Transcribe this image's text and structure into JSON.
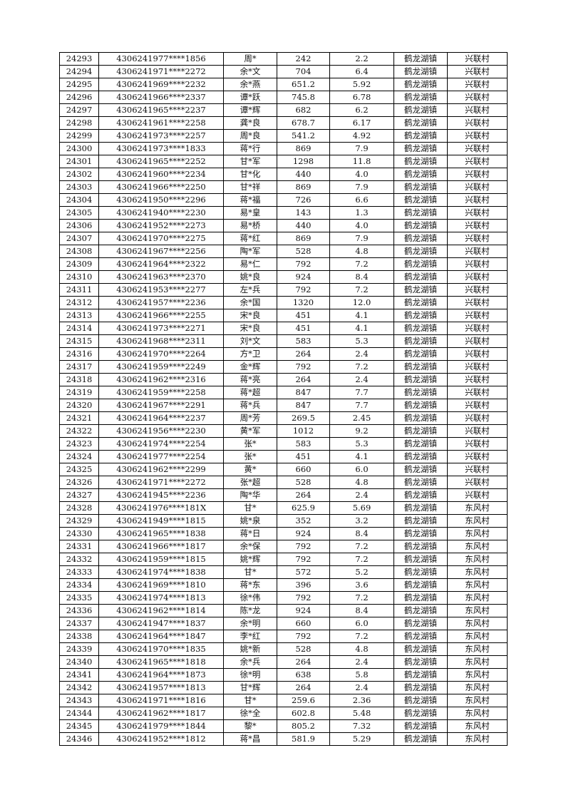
{
  "rows": [
    [
      "24293",
      "4306241977****1856",
      "周*",
      "242",
      "2.2",
      "鹤龙湖镇",
      "兴联村"
    ],
    [
      "24294",
      "4306241971****2272",
      "余*文",
      "704",
      "6.4",
      "鹤龙湖镇",
      "兴联村"
    ],
    [
      "24295",
      "4306241969****2232",
      "余*燕",
      "651.2",
      "5.92",
      "鹤龙湖镇",
      "兴联村"
    ],
    [
      "24296",
      "4306241966****2337",
      "谭*跃",
      "745.8",
      "6.78",
      "鹤龙湖镇",
      "兴联村"
    ],
    [
      "24297",
      "4306241965****2237",
      "谭*辉",
      "682",
      "6.2",
      "鹤龙湖镇",
      "兴联村"
    ],
    [
      "24298",
      "4306241961****2258",
      "龚*良",
      "678.7",
      "6.17",
      "鹤龙湖镇",
      "兴联村"
    ],
    [
      "24299",
      "4306241973****2257",
      "周*良",
      "541.2",
      "4.92",
      "鹤龙湖镇",
      "兴联村"
    ],
    [
      "24300",
      "4306241973****1833",
      "蒋*行",
      "869",
      "7.9",
      "鹤龙湖镇",
      "兴联村"
    ],
    [
      "24301",
      "4306241965****2252",
      "甘*军",
      "1298",
      "11.8",
      "鹤龙湖镇",
      "兴联村"
    ],
    [
      "24302",
      "4306241960****2234",
      "甘*化",
      "440",
      "4.0",
      "鹤龙湖镇",
      "兴联村"
    ],
    [
      "24303",
      "4306241966****2250",
      "甘*祥",
      "869",
      "7.9",
      "鹤龙湖镇",
      "兴联村"
    ],
    [
      "24304",
      "4306241950****2296",
      "蒋*福",
      "726",
      "6.6",
      "鹤龙湖镇",
      "兴联村"
    ],
    [
      "24305",
      "4306241940****2230",
      "易*皇",
      "143",
      "1.3",
      "鹤龙湖镇",
      "兴联村"
    ],
    [
      "24306",
      "4306241952****2273",
      "易*桥",
      "440",
      "4.0",
      "鹤龙湖镇",
      "兴联村"
    ],
    [
      "24307",
      "4306241970****2275",
      "蒋*红",
      "869",
      "7.9",
      "鹤龙湖镇",
      "兴联村"
    ],
    [
      "24308",
      "4306241967****2256",
      "陶*军",
      "528",
      "4.8",
      "鹤龙湖镇",
      "兴联村"
    ],
    [
      "24309",
      "4306241964****2322",
      "易*仁",
      "792",
      "7.2",
      "鹤龙湖镇",
      "兴联村"
    ],
    [
      "24310",
      "4306241963****2370",
      "姚*良",
      "924",
      "8.4",
      "鹤龙湖镇",
      "兴联村"
    ],
    [
      "24311",
      "4306241953****2277",
      "左*兵",
      "792",
      "7.2",
      "鹤龙湖镇",
      "兴联村"
    ],
    [
      "24312",
      "4306241957****2236",
      "余*国",
      "1320",
      "12.0",
      "鹤龙湖镇",
      "兴联村"
    ],
    [
      "24313",
      "4306241966****2255",
      "宋*良",
      "451",
      "4.1",
      "鹤龙湖镇",
      "兴联村"
    ],
    [
      "24314",
      "4306241973****2271",
      "宋*良",
      "451",
      "4.1",
      "鹤龙湖镇",
      "兴联村"
    ],
    [
      "24315",
      "4306241968****2311",
      "刘*文",
      "583",
      "5.3",
      "鹤龙湖镇",
      "兴联村"
    ],
    [
      "24316",
      "4306241970****2264",
      "方*卫",
      "264",
      "2.4",
      "鹤龙湖镇",
      "兴联村"
    ],
    [
      "24317",
      "4306241959****2249",
      "金*辉",
      "792",
      "7.2",
      "鹤龙湖镇",
      "兴联村"
    ],
    [
      "24318",
      "4306241962****2316",
      "蒋*亮",
      "264",
      "2.4",
      "鹤龙湖镇",
      "兴联村"
    ],
    [
      "24319",
      "4306241959****2258",
      "蒋*超",
      "847",
      "7.7",
      "鹤龙湖镇",
      "兴联村"
    ],
    [
      "24320",
      "4306241967****2291",
      "蒋*兵",
      "847",
      "7.7",
      "鹤龙湖镇",
      "兴联村"
    ],
    [
      "24321",
      "4306241964****2237",
      "周*芳",
      "269.5",
      "2.45",
      "鹤龙湖镇",
      "兴联村"
    ],
    [
      "24322",
      "4306241956****2230",
      "黄*军",
      "1012",
      "9.2",
      "鹤龙湖镇",
      "兴联村"
    ],
    [
      "24323",
      "4306241974****2254",
      "张*",
      "583",
      "5.3",
      "鹤龙湖镇",
      "兴联村"
    ],
    [
      "24324",
      "4306241977****2254",
      "张*",
      "451",
      "4.1",
      "鹤龙湖镇",
      "兴联村"
    ],
    [
      "24325",
      "4306241962****2299",
      "黄*",
      "660",
      "6.0",
      "鹤龙湖镇",
      "兴联村"
    ],
    [
      "24326",
      "4306241971****2272",
      "张*超",
      "528",
      "4.8",
      "鹤龙湖镇",
      "兴联村"
    ],
    [
      "24327",
      "4306241945****2236",
      "陶*华",
      "264",
      "2.4",
      "鹤龙湖镇",
      "兴联村"
    ],
    [
      "24328",
      "4306241976****181X",
      "甘*",
      "625.9",
      "5.69",
      "鹤龙湖镇",
      "东风村"
    ],
    [
      "24329",
      "4306241949****1815",
      "姚*泉",
      "352",
      "3.2",
      "鹤龙湖镇",
      "东风村"
    ],
    [
      "24330",
      "4306241965****1838",
      "蒋*日",
      "924",
      "8.4",
      "鹤龙湖镇",
      "东风村"
    ],
    [
      "24331",
      "4306241966****1817",
      "余*保",
      "792",
      "7.2",
      "鹤龙湖镇",
      "东风村"
    ],
    [
      "24332",
      "4306241959****1815",
      "姚*辉",
      "792",
      "7.2",
      "鹤龙湖镇",
      "东风村"
    ],
    [
      "24333",
      "4306241974****1838",
      "甘*",
      "572",
      "5.2",
      "鹤龙湖镇",
      "东风村"
    ],
    [
      "24334",
      "4306241969****1810",
      "蒋*东",
      "396",
      "3.6",
      "鹤龙湖镇",
      "东风村"
    ],
    [
      "24335",
      "4306241974****1813",
      "徐*伟",
      "792",
      "7.2",
      "鹤龙湖镇",
      "东风村"
    ],
    [
      "24336",
      "4306241962****1814",
      "陈*龙",
      "924",
      "8.4",
      "鹤龙湖镇",
      "东风村"
    ],
    [
      "24337",
      "4306241947****1837",
      "余*明",
      "660",
      "6.0",
      "鹤龙湖镇",
      "东风村"
    ],
    [
      "24338",
      "4306241964****1847",
      "李*红",
      "792",
      "7.2",
      "鹤龙湖镇",
      "东风村"
    ],
    [
      "24339",
      "4306241970****1835",
      "姚*新",
      "528",
      "4.8",
      "鹤龙湖镇",
      "东风村"
    ],
    [
      "24340",
      "4306241965****1818",
      "余*兵",
      "264",
      "2.4",
      "鹤龙湖镇",
      "东风村"
    ],
    [
      "24341",
      "4306241964****1873",
      "徐*明",
      "638",
      "5.8",
      "鹤龙湖镇",
      "东风村"
    ],
    [
      "24342",
      "4306241957****1813",
      "甘*辉",
      "264",
      "2.4",
      "鹤龙湖镇",
      "东风村"
    ],
    [
      "24343",
      "4306241971****1816",
      "甘*",
      "259.6",
      "2.36",
      "鹤龙湖镇",
      "东风村"
    ],
    [
      "24344",
      "4306241962****1817",
      "徐*全",
      "602.8",
      "5.48",
      "鹤龙湖镇",
      "东风村"
    ],
    [
      "24345",
      "4306241979****1844",
      "黎*",
      "805.2",
      "7.32",
      "鹤龙湖镇",
      "东风村"
    ],
    [
      "24346",
      "4306241952****1812",
      "蒋*昌",
      "581.9",
      "5.29",
      "鹤龙湖镇",
      "东风村"
    ]
  ]
}
